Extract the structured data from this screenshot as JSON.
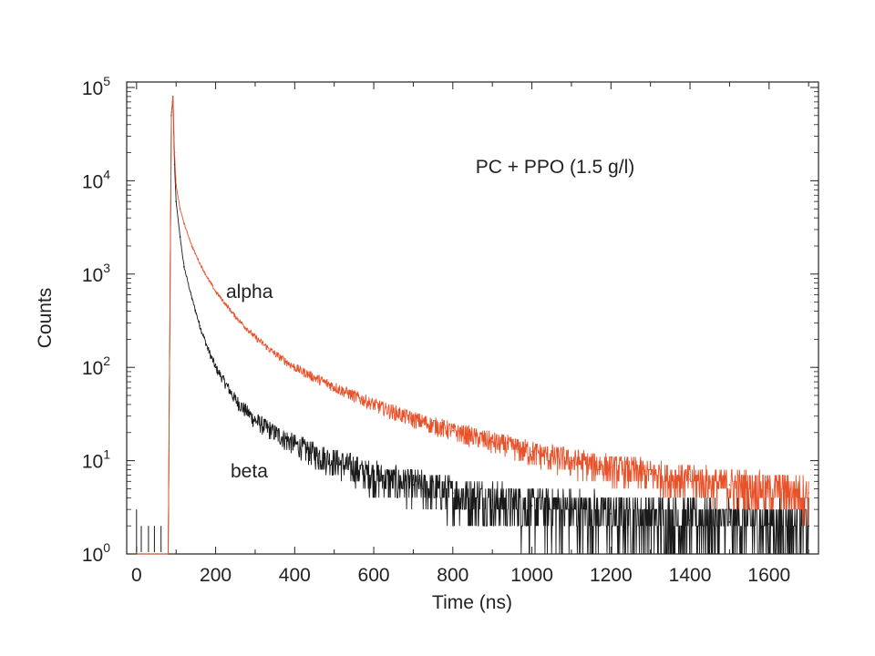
{
  "chart_data": {
    "type": "line",
    "xlabel": "Time (ns)",
    "ylabel": "Counts",
    "xlim": [
      -25,
      1725
    ],
    "ylim": [
      1,
      100000
    ],
    "yscale": "log",
    "grid": false,
    "x_ticks": [
      0,
      200,
      400,
      600,
      800,
      1000,
      1200,
      1400,
      1600
    ],
    "y_ticks": [
      {
        "value": 1,
        "base": "10",
        "exp": "0"
      },
      {
        "value": 10,
        "base": "10",
        "exp": "1"
      },
      {
        "value": 100,
        "base": "10",
        "exp": "2"
      },
      {
        "value": 1000,
        "base": "10",
        "exp": "3"
      },
      {
        "value": 10000,
        "base": "10",
        "exp": "4"
      },
      {
        "value": 100000,
        "base": "10",
        "exp": "5"
      }
    ],
    "annotation": "PC + PPO (1.5 g/l)",
    "series": [
      {
        "name": "alpha",
        "color": "#e8522a",
        "x": [
          0,
          80,
          88,
          92,
          96,
          100,
          110,
          120,
          140,
          160,
          180,
          200,
          250,
          300,
          350,
          400,
          450,
          500,
          600,
          700,
          800,
          900,
          1000,
          1100,
          1200,
          1300,
          1400,
          1500,
          1600,
          1700
        ],
        "y": [
          1,
          1,
          50000,
          80000,
          20000,
          9000,
          5000,
          3500,
          2000,
          1300,
          900,
          650,
          350,
          210,
          140,
          100,
          78,
          62,
          40,
          28,
          21,
          16,
          12.5,
          10,
          8.5,
          7.2,
          6.3,
          5.5,
          5,
          4.5
        ]
      },
      {
        "name": "beta",
        "color": "#1a1a1a",
        "x": [
          0,
          80,
          88,
          92,
          96,
          100,
          110,
          120,
          140,
          160,
          180,
          200,
          250,
          300,
          350,
          400,
          450,
          500,
          600,
          700,
          800,
          900,
          1000,
          1100,
          1200,
          1300,
          1400,
          1500,
          1600,
          1700
        ],
        "y": [
          1,
          1,
          50000,
          80000,
          15000,
          6000,
          2500,
          1200,
          550,
          280,
          160,
          100,
          45,
          27,
          20,
          15,
          12,
          10,
          7,
          5.5,
          4.5,
          3.8,
          3.3,
          3,
          2.7,
          2.5,
          2.3,
          2.2,
          2.1,
          2
        ]
      }
    ]
  }
}
